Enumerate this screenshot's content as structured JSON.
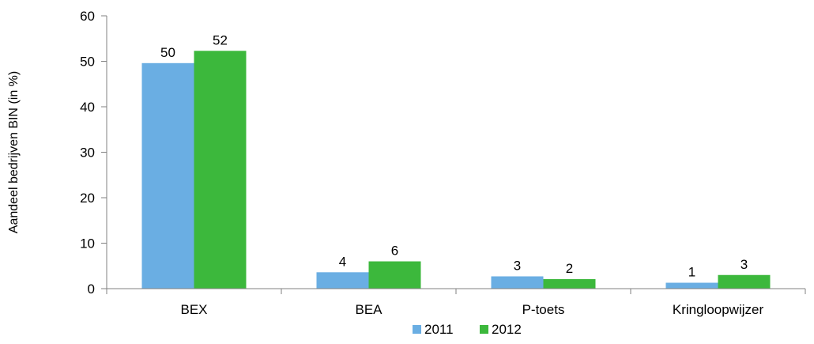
{
  "chart_data": {
    "type": "bar",
    "categories": [
      "BEX",
      "BEA",
      "P-toets",
      "Kringloopwijzer"
    ],
    "series": [
      {
        "name": "2011",
        "values": [
          49.6,
          3.6,
          2.7,
          1.3
        ],
        "labels": [
          "50",
          "4",
          "3",
          "1"
        ],
        "color": "#6aaee3"
      },
      {
        "name": "2012",
        "values": [
          52.3,
          6.0,
          2.1,
          3.0
        ],
        "labels": [
          "52",
          "6",
          "2",
          "3"
        ],
        "color": "#3cb83c"
      }
    ],
    "ylabel": "Aandeel bedrijven BIN (in %)",
    "xlabel": "",
    "ylim": [
      0,
      60
    ],
    "yticks": [
      0,
      10,
      20,
      30,
      40,
      50,
      60
    ],
    "grid": false,
    "legend_position": "bottom"
  }
}
